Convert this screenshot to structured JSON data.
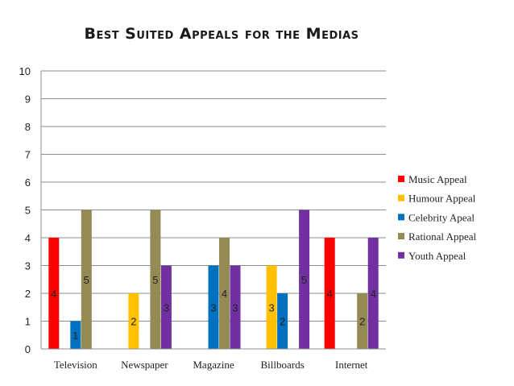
{
  "chart_data": {
    "type": "bar",
    "title": "Best Suited Appeals for the Medias",
    "categories": [
      "Television",
      "Newspaper",
      "Magazine",
      "Billboards",
      "Internet"
    ],
    "series": [
      {
        "name": "Music Appeal",
        "color": "#ff0000",
        "values": [
          4,
          0,
          0,
          0,
          4
        ]
      },
      {
        "name": "Humour Appeal",
        "color": "#ffc000",
        "values": [
          0,
          2,
          0,
          3,
          0
        ]
      },
      {
        "name": "Celebrity Apeal",
        "color": "#0070c0",
        "values": [
          1,
          0,
          3,
          2,
          0
        ]
      },
      {
        "name": "Rational Appeal",
        "color": "#948a54",
        "values": [
          5,
          5,
          4,
          0,
          2
        ]
      },
      {
        "name": "Youth Appeal",
        "color": "#7030a0",
        "values": [
          0,
          3,
          3,
          5,
          4
        ]
      }
    ],
    "yticks": [
      "0",
      "1",
      "2",
      "3",
      "4",
      "5",
      "6",
      "7",
      "8",
      "9",
      "10"
    ],
    "ylim": [
      0,
      10
    ],
    "grid": true,
    "legend": "right",
    "xlabel": "",
    "ylabel": ""
  }
}
